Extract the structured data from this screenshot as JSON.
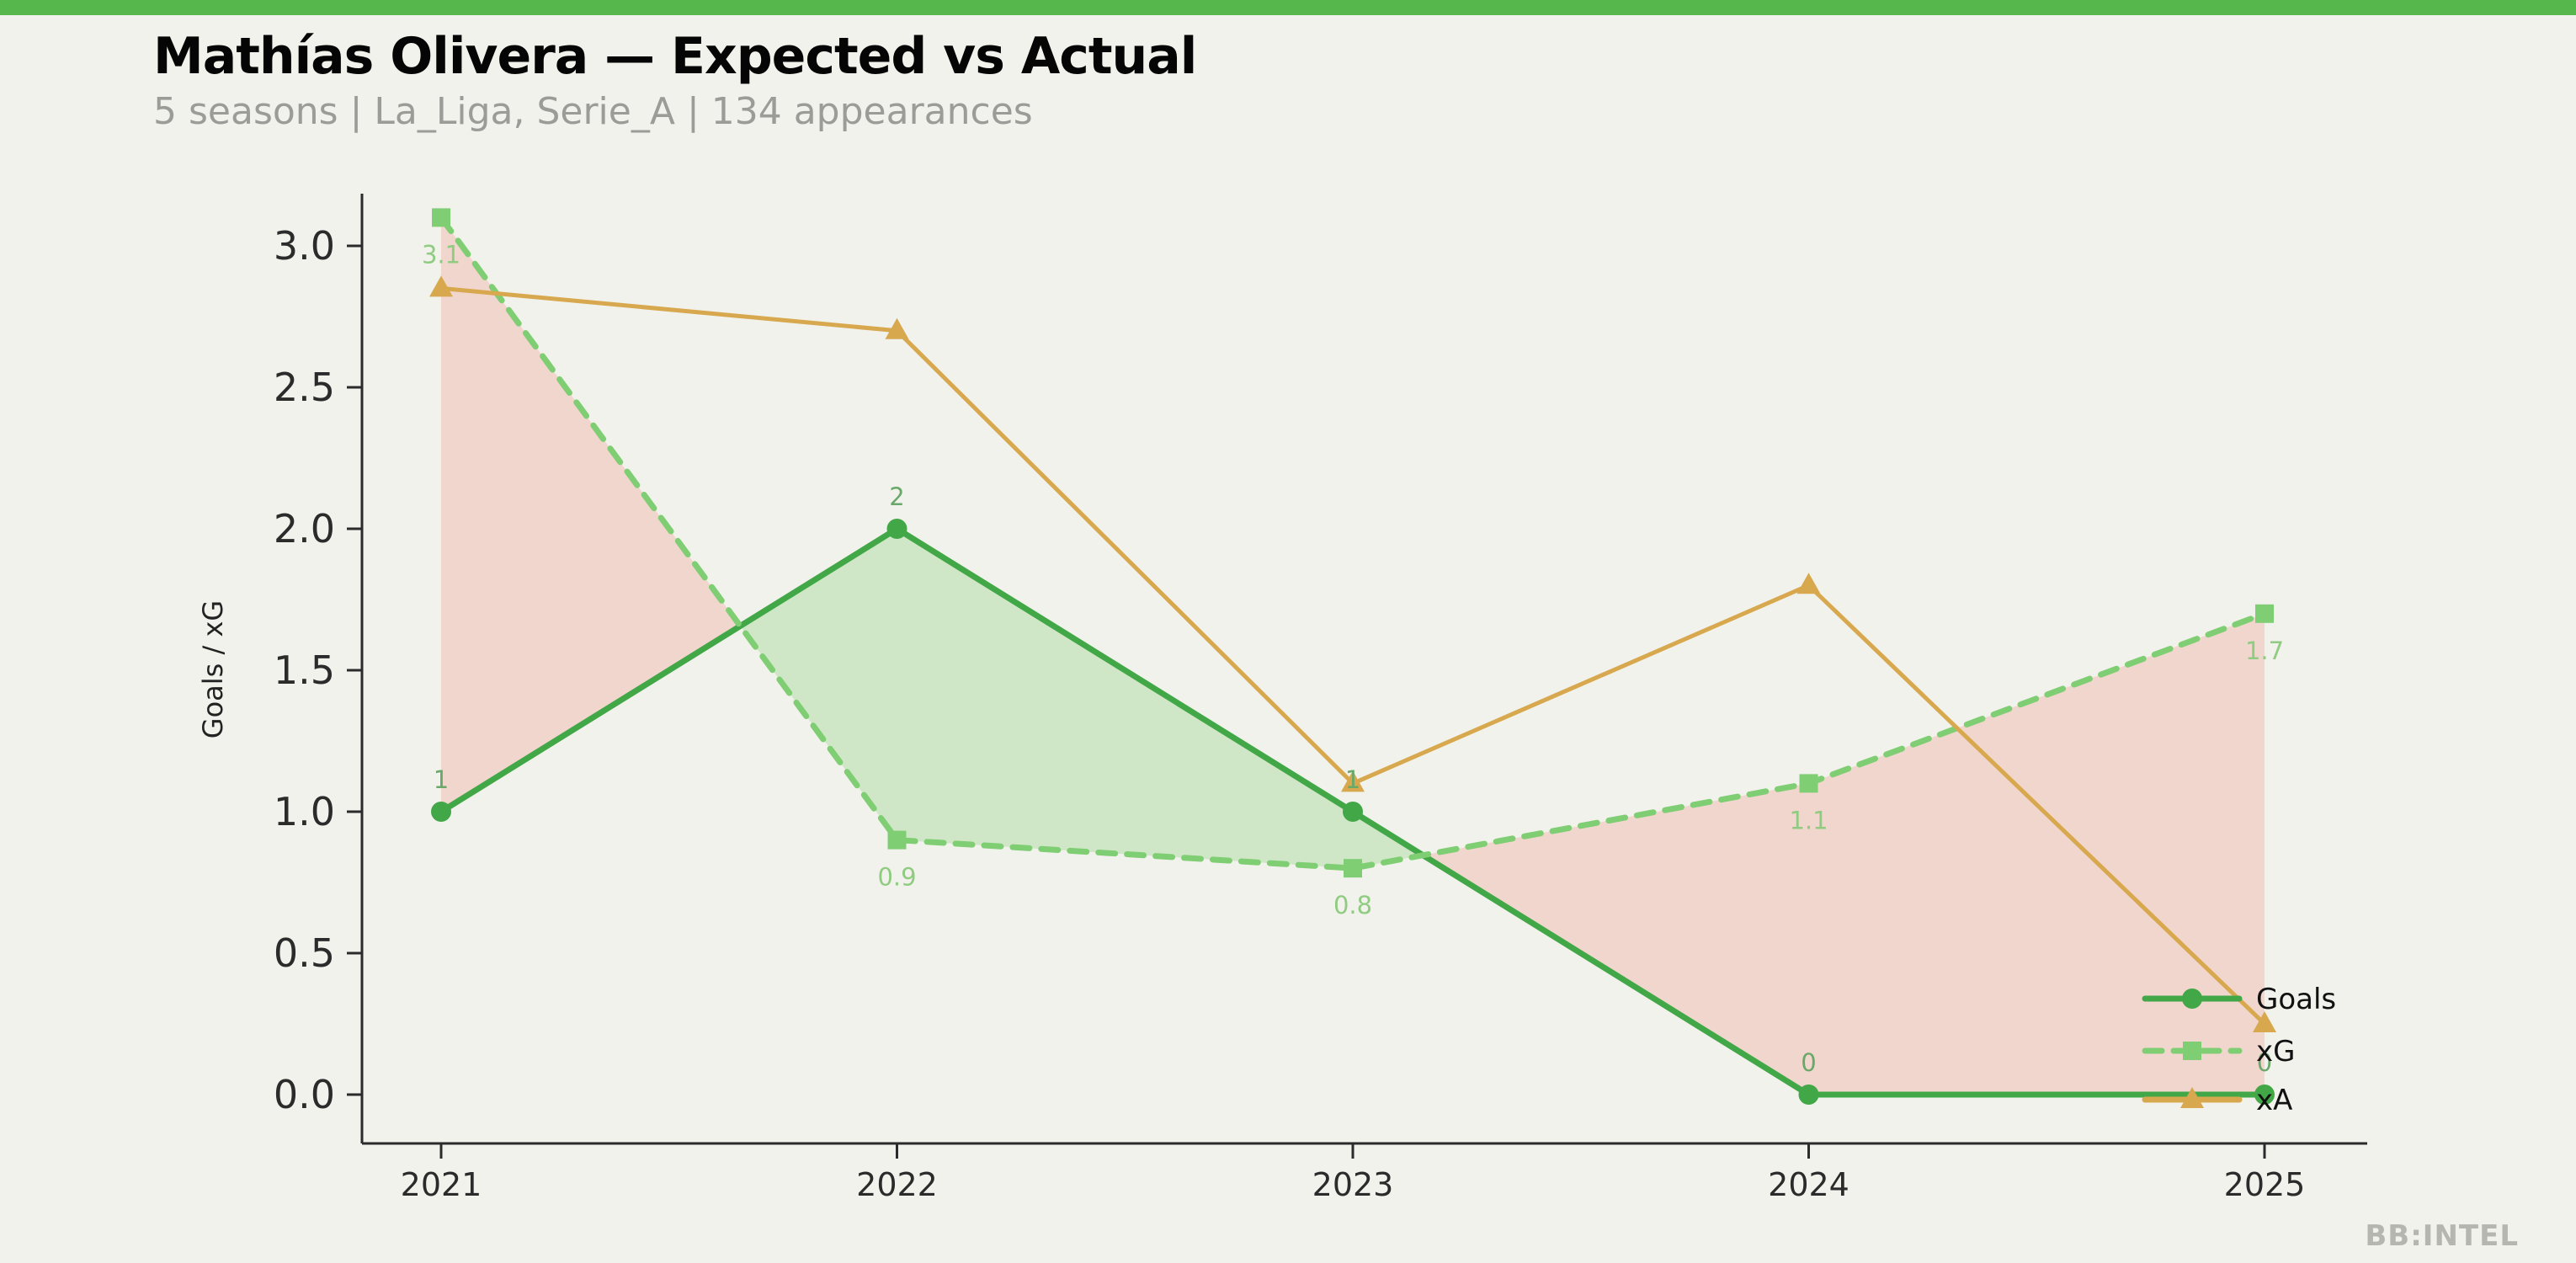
{
  "page": {
    "background": "#f2f2ec",
    "accent_bar_color": "#56b84c",
    "watermark": "BB:INTEL"
  },
  "header": {
    "title": "Mathías Olivera — Expected vs Actual",
    "subtitle": "5 seasons | La_Liga, Serie_A | 134 appearances"
  },
  "chart_data": {
    "type": "line",
    "title": "Mathías Olivera — Expected vs Actual",
    "subtitle": "5 seasons | La_Liga, Serie_A | 134 appearances",
    "x": [
      2021,
      2022,
      2023,
      2024,
      2025
    ],
    "xlabel": "",
    "ylabel": "Goals / xG",
    "ylim": [
      0,
      3.2
    ],
    "yticks": [
      0,
      0.5,
      1,
      1.5,
      2,
      2.5,
      3
    ],
    "grid": false,
    "legend_position": "lower right",
    "axis_color": "#2b2b2b",
    "series": [
      {
        "name": "Goals",
        "values": [
          1,
          2,
          1,
          0,
          0
        ],
        "color": "#41a747",
        "marker": "circle",
        "line_style": "solid",
        "labels": [
          "1",
          "2",
          "1",
          "0",
          "0"
        ],
        "label_position": "above",
        "label_color": "#6aa86a"
      },
      {
        "name": "xG",
        "values": [
          3.1,
          0.9,
          0.8,
          1.1,
          1.7
        ],
        "color": "#7fce73",
        "marker": "square",
        "line_style": "dashed",
        "labels": [
          "3.1",
          "0.9",
          "0.8",
          "1.1",
          "1.7"
        ],
        "label_position": "below",
        "label_color": "#8fcc81"
      },
      {
        "name": "xA",
        "values": [
          2.85,
          2.7,
          1.1,
          1.8,
          0.25
        ],
        "color": "#d8a84f",
        "marker": "triangle",
        "line_style": "solid",
        "labels": [],
        "label_position": "above",
        "label_color": "#d8a84f"
      }
    ],
    "fills": {
      "between": [
        "Goals",
        "xG"
      ],
      "overperformance_color": "rgba(128,205,114,0.30)",
      "underperformance_color": "rgba(236,112,102,0.22)"
    }
  }
}
